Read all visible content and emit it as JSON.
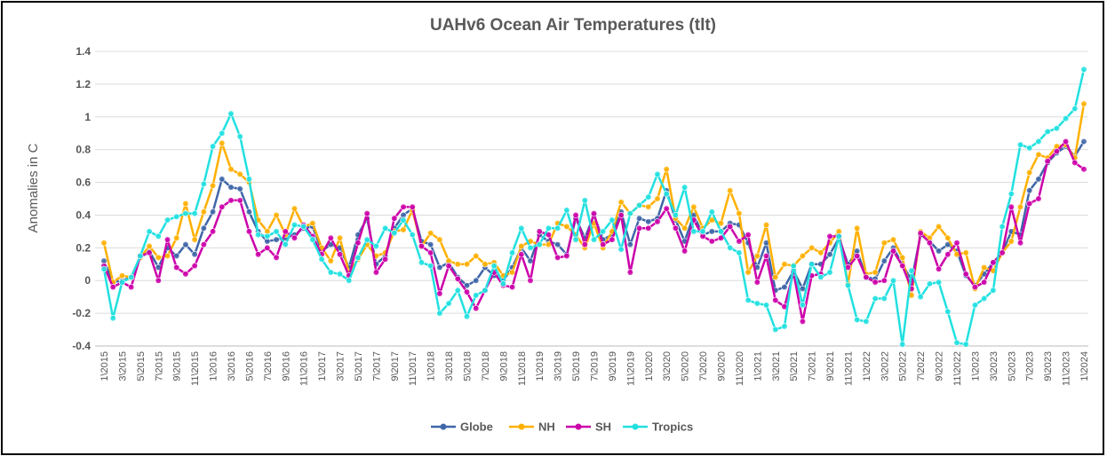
{
  "chart_data": {
    "type": "line",
    "title": "UAHv6 Ocean Air Temperatures (tlt)",
    "y_label": "Anomalies in C",
    "categories": [
      "1\\2015",
      null,
      "3\\2015",
      null,
      "5\\2015",
      null,
      "7\\2015",
      null,
      "9\\2015",
      null,
      "11\\2015",
      null,
      "1\\2016",
      null,
      "3\\2016",
      null,
      "5\\2016",
      null,
      "7\\2016",
      null,
      "9\\2016",
      null,
      "11\\2016",
      null,
      "1\\2017",
      null,
      "3\\2017",
      null,
      "5\\2017",
      null,
      "7\\2017",
      null,
      "9\\2017",
      null,
      "11\\2017",
      null,
      "1\\2018",
      null,
      "3\\2018",
      null,
      "5\\2018",
      null,
      "7\\2018",
      null,
      "9\\2018",
      null,
      "11\\2018",
      null,
      "1\\2019",
      null,
      "3\\2019",
      null,
      "5\\2019",
      null,
      "7\\2019",
      null,
      "9\\2019",
      null,
      "11\\2019",
      null,
      "1\\2020",
      null,
      "3\\2020",
      null,
      "5\\2020",
      null,
      "7\\2020",
      null,
      "9\\2020",
      null,
      "11\\2020",
      null,
      "1\\2021",
      null,
      "3\\2021",
      null,
      "5\\2021",
      null,
      "7\\2021",
      null,
      "9\\2021",
      null,
      "11\\2021",
      null,
      "1\\2022",
      null,
      "3\\2022",
      null,
      "5\\2022",
      null,
      "7\\2022",
      null,
      "9\\2022",
      null,
      "11\\2022",
      null,
      "1\\2023",
      null,
      "3\\2023",
      null,
      "5\\2023",
      null,
      "7\\2023",
      null,
      "9\\2023",
      null,
      "11\\2023",
      null,
      "1\\2024"
    ],
    "series": [
      {
        "name": "Globe",
        "color": "#3f66a8",
        "values": [
          0.12,
          -0.01,
          0.0,
          0.02,
          0.14,
          0.18,
          0.08,
          0.2,
          0.15,
          0.22,
          0.16,
          0.32,
          0.42,
          0.62,
          0.57,
          0.56,
          0.42,
          0.3,
          0.24,
          0.25,
          0.26,
          0.28,
          0.32,
          0.33,
          0.18,
          0.22,
          0.2,
          0.08,
          0.28,
          0.38,
          0.1,
          0.15,
          0.32,
          0.4,
          0.44,
          0.24,
          0.22,
          0.08,
          0.11,
          0.02,
          -0.03,
          0.0,
          0.08,
          0.03,
          0.0,
          0.08,
          0.2,
          0.12,
          0.28,
          0.24,
          0.22,
          0.16,
          0.38,
          0.26,
          0.4,
          0.25,
          0.28,
          0.42,
          0.22,
          0.38,
          0.36,
          0.38,
          0.55,
          0.37,
          0.24,
          0.4,
          0.28,
          0.3,
          0.3,
          0.35,
          0.34,
          0.23,
          0.08,
          0.23,
          -0.06,
          -0.04,
          0.06,
          -0.05,
          0.1,
          0.1,
          0.16,
          0.26,
          0.1,
          0.18,
          0.02,
          0.01,
          0.12,
          0.2,
          0.1,
          0.0,
          0.28,
          0.24,
          0.18,
          0.22,
          0.18,
          0.03,
          -0.03,
          0.04,
          0.11,
          0.17,
          0.3,
          0.28,
          0.55,
          0.62,
          0.72,
          0.78,
          0.82,
          0.76,
          0.85
        ]
      },
      {
        "name": "NH",
        "color": "#ffb000",
        "values": [
          0.23,
          -0.01,
          0.03,
          0.02,
          0.14,
          0.21,
          0.14,
          0.15,
          0.26,
          0.47,
          0.25,
          0.42,
          0.58,
          0.84,
          0.68,
          0.65,
          0.6,
          0.37,
          0.3,
          0.4,
          0.28,
          0.44,
          0.33,
          0.35,
          0.2,
          0.12,
          0.26,
          0.05,
          0.13,
          0.22,
          0.15,
          0.17,
          0.3,
          0.31,
          0.43,
          0.21,
          0.29,
          0.25,
          0.12,
          0.1,
          0.1,
          0.15,
          0.1,
          0.11,
          0.03,
          0.05,
          0.21,
          0.24,
          0.22,
          0.22,
          0.35,
          0.33,
          0.28,
          0.2,
          0.35,
          0.2,
          0.3,
          0.48,
          0.41,
          0.46,
          0.45,
          0.5,
          0.68,
          0.38,
          0.32,
          0.45,
          0.32,
          0.37,
          0.35,
          0.55,
          0.41,
          0.05,
          0.15,
          0.34,
          0.02,
          0.1,
          0.09,
          0.15,
          0.2,
          0.17,
          0.23,
          0.3,
          -0.02,
          0.32,
          0.04,
          0.05,
          0.23,
          0.25,
          0.14,
          -0.09,
          0.3,
          0.26,
          0.33,
          0.26,
          0.16,
          0.17,
          -0.05,
          0.08,
          0.06,
          0.17,
          0.24,
          0.45,
          0.66,
          0.77,
          0.75,
          0.82,
          0.83,
          0.75,
          1.08
        ]
      },
      {
        "name": "SH",
        "color": "#cc00aa",
        "values": [
          0.09,
          -0.04,
          -0.01,
          -0.04,
          0.15,
          0.17,
          0.0,
          0.25,
          0.08,
          0.04,
          0.09,
          0.22,
          0.3,
          0.45,
          0.49,
          0.49,
          0.3,
          0.16,
          0.2,
          0.14,
          0.3,
          0.26,
          0.34,
          0.27,
          0.16,
          0.26,
          0.16,
          0.03,
          0.23,
          0.41,
          0.05,
          0.13,
          0.38,
          0.45,
          0.45,
          0.21,
          0.17,
          -0.08,
          0.09,
          0.01,
          -0.07,
          -0.17,
          -0.06,
          0.05,
          -0.03,
          -0.04,
          0.16,
          0.0,
          0.3,
          0.28,
          0.14,
          0.15,
          0.4,
          0.22,
          0.41,
          0.22,
          0.25,
          0.4,
          0.05,
          0.32,
          0.32,
          0.36,
          0.44,
          0.32,
          0.18,
          0.37,
          0.27,
          0.24,
          0.26,
          0.33,
          0.24,
          0.28,
          -0.01,
          0.15,
          -0.12,
          -0.16,
          0.05,
          -0.25,
          0.03,
          0.04,
          0.27,
          0.27,
          0.08,
          0.15,
          0.02,
          -0.01,
          0.0,
          0.18,
          0.09,
          -0.05,
          0.29,
          0.23,
          0.07,
          0.16,
          0.23,
          0.04,
          -0.04,
          -0.01,
          0.11,
          0.17,
          0.45,
          0.23,
          0.47,
          0.5,
          0.73,
          0.79,
          0.85,
          0.72,
          0.68
        ]
      },
      {
        "name": "Tropics",
        "color": "#22e0e0",
        "values": [
          0.07,
          -0.23,
          -0.01,
          0.02,
          0.15,
          0.3,
          0.27,
          0.37,
          0.39,
          0.41,
          0.41,
          0.59,
          0.82,
          0.9,
          1.02,
          0.88,
          0.62,
          0.28,
          0.27,
          0.3,
          0.22,
          0.34,
          0.33,
          0.25,
          0.13,
          0.05,
          0.04,
          0.0,
          0.14,
          0.25,
          0.21,
          0.32,
          0.29,
          0.37,
          0.28,
          0.11,
          0.09,
          -0.2,
          -0.14,
          -0.06,
          -0.22,
          -0.09,
          -0.06,
          0.09,
          -0.02,
          0.17,
          0.32,
          0.2,
          0.22,
          0.32,
          0.32,
          0.43,
          0.25,
          0.49,
          0.25,
          0.3,
          0.37,
          0.19,
          0.41,
          0.46,
          0.51,
          0.65,
          0.53,
          0.4,
          0.57,
          0.3,
          0.3,
          0.42,
          0.3,
          0.2,
          0.17,
          -0.12,
          -0.14,
          -0.15,
          -0.3,
          -0.28,
          0.09,
          -0.15,
          0.1,
          0.02,
          0.05,
          0.27,
          -0.03,
          -0.24,
          -0.25,
          -0.11,
          -0.11,
          0.0,
          -0.39,
          0.06,
          -0.1,
          -0.02,
          -0.01,
          -0.19,
          -0.38,
          -0.39,
          -0.15,
          -0.11,
          -0.06,
          0.33,
          0.53,
          0.83,
          0.81,
          0.85,
          0.91,
          0.93,
          0.99,
          1.05,
          1.29
        ]
      }
    ],
    "ylim": [
      -0.4,
      1.4
    ],
    "yticks": [
      -0.4,
      -0.2,
      0,
      0.2,
      0.4,
      0.6,
      0.8,
      1,
      1.2,
      1.4
    ],
    "grid": true,
    "legend": "bottom"
  }
}
